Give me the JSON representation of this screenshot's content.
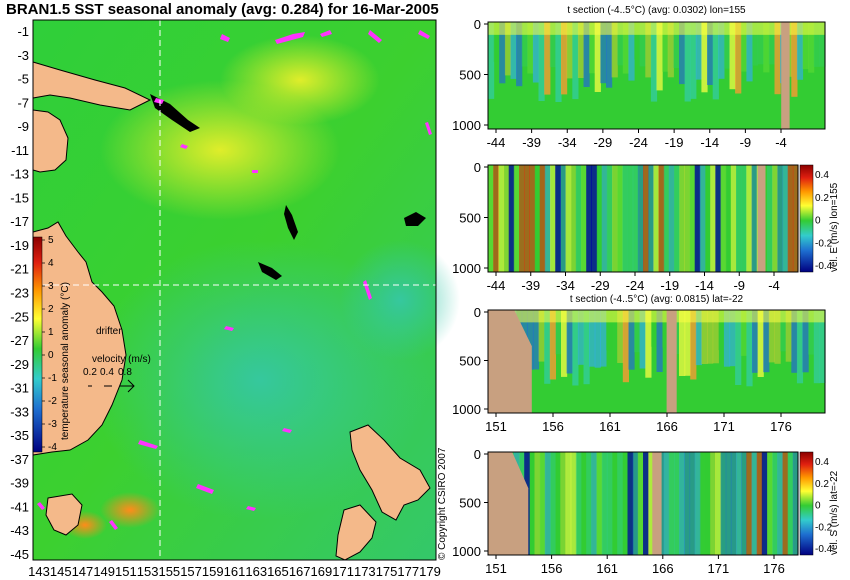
{
  "title": "BRAN1.5 SST seasonal anomaly (avg: 0.284) for 16-Mar-2005",
  "copyright": "© Copyright CSIRO 2007",
  "colors": {
    "land": "#f4b98a",
    "section_land": "#c8a080",
    "ocean": "#33cc33",
    "highlight": "#ff33ff",
    "crosshair": "#ffffff"
  },
  "main_map": {
    "y_ticks": [
      "-1",
      "-3",
      "-5",
      "-7",
      "-9",
      "-11",
      "-13",
      "-15",
      "-17",
      "-19",
      "-21",
      "-23",
      "-25",
      "-27",
      "-29",
      "-31",
      "-33",
      "-35",
      "-37",
      "-39",
      "-41",
      "-43",
      "-45"
    ],
    "x_ticks": [
      "143",
      "145",
      "147",
      "149",
      "151",
      "153",
      "155",
      "157",
      "159",
      "161",
      "163",
      "165",
      "167",
      "169",
      "171",
      "173",
      "175",
      "177",
      "179"
    ],
    "colorbar": {
      "label": "temperature seasonal anomaly (°C)",
      "ticks": [
        "5",
        "4",
        "3",
        "2",
        "1",
        "0",
        "-1",
        "-2",
        "-3",
        "-4"
      ]
    },
    "drifter_label": "drifter",
    "velocity_label": "velocity (m/s)",
    "velocity_ticks": [
      "0.2",
      "0.4",
      "0.8"
    ]
  },
  "panels": [
    {
      "title": "t section (-4..5°C) (avg: 0.0302) lon=155",
      "x_ticks": [
        "-44",
        "-39",
        "-34",
        "-29",
        "-24",
        "-19",
        "-14",
        "-9",
        "-4"
      ],
      "y_ticks": [
        "0",
        "500",
        "1000"
      ]
    },
    {
      "title": "",
      "x_ticks": [
        "-44",
        "-39",
        "-34",
        "-29",
        "-24",
        "-19",
        "-14",
        "-9",
        "-4"
      ],
      "y_ticks": [
        "0",
        "500",
        "1000"
      ],
      "colorbar": {
        "label": "vel. E (m/s) lon=155",
        "ticks": [
          "0.4",
          "0.2",
          "0",
          "-0.2",
          "-0.4"
        ]
      }
    },
    {
      "title": "t section (-4..5°C) (avg: 0.0815) lat=-22",
      "x_ticks": [
        "151",
        "156",
        "161",
        "166",
        "171",
        "176"
      ],
      "y_ticks": [
        "0",
        "500",
        "1000"
      ]
    },
    {
      "title": "",
      "x_ticks": [
        "151",
        "156",
        "161",
        "166",
        "171",
        "176"
      ],
      "y_ticks": [
        "0",
        "500",
        "1000"
      ],
      "colorbar": {
        "label": "vel. S (m/s) lat=-22",
        "ticks": [
          "0.4",
          "0.2",
          "0",
          "-0.2",
          "-0.4"
        ]
      }
    }
  ],
  "chart_data": [
    {
      "type": "heatmap",
      "title": "BRAN1.5 SST seasonal anomaly (avg: 0.284) for 16-Mar-2005",
      "xlabel": "",
      "ylabel": "",
      "x_range": [
        143,
        179
      ],
      "y_range": [
        -45,
        -1
      ],
      "value_range": [
        -4,
        5
      ],
      "average": 0.284,
      "section_lon": 155,
      "section_lat": -22
    },
    {
      "type": "heatmap",
      "title": "t section (-4..5°C) (avg: 0.0302) lon=155",
      "x_range": [
        -44,
        -4
      ],
      "y_range": [
        0,
        1000
      ],
      "value_range": [
        -4,
        5
      ],
      "average": 0.0302
    },
    {
      "type": "heatmap",
      "title": "",
      "x_range": [
        -44,
        -4
      ],
      "y_range": [
        0,
        1000
      ],
      "value_range": [
        -0.4,
        0.4
      ],
      "colorbar_label": "vel. E (m/s) lon=155"
    },
    {
      "type": "heatmap",
      "title": "t section (-4..5°C) (avg: 0.0815) lat=-22",
      "x_range": [
        151,
        179
      ],
      "y_range": [
        0,
        1000
      ],
      "value_range": [
        -4,
        5
      ],
      "average": 0.0815
    },
    {
      "type": "heatmap",
      "title": "",
      "x_range": [
        151,
        179
      ],
      "y_range": [
        0,
        1000
      ],
      "value_range": [
        -0.4,
        0.4
      ],
      "colorbar_label": "vel. S (m/s) lat=-22"
    }
  ]
}
